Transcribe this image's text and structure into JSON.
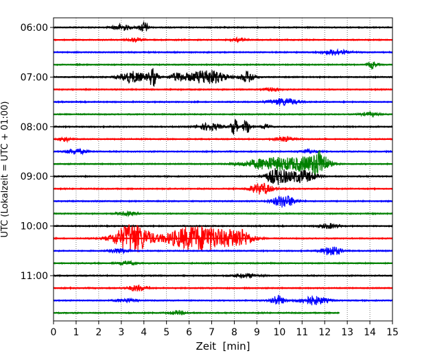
{
  "chart_data": {
    "type": "line",
    "title": "",
    "xlabel": "Zeit  [min]",
    "ylabel": "UTC (Lokalzeit = UTC + 01:00)",
    "xlim": [
      0,
      15
    ],
    "x_ticks": [
      "0",
      "1",
      "2",
      "3",
      "4",
      "5",
      "6",
      "7",
      "8",
      "9",
      "10",
      "11",
      "12",
      "13",
      "14",
      "15"
    ],
    "y_ticks": [
      "06:00",
      "07:00",
      "08:00",
      "09:00",
      "10:00",
      "11:00"
    ],
    "grid": "vertical dotted",
    "colors": {
      "black": "#000000",
      "red": "#ff0000",
      "blue": "#0000ff",
      "green": "#008000"
    },
    "color_cycle": [
      "black",
      "red",
      "blue",
      "green"
    ],
    "trace_interval_min": 15,
    "traces": [
      {
        "start": "06:00",
        "color": "black",
        "end_min": 15,
        "bursts": [
          [
            3.0,
            0.4,
            0.5
          ],
          [
            4.0,
            0.2,
            0.9
          ]
        ]
      },
      {
        "start": "06:15",
        "color": "red",
        "end_min": 15,
        "bursts": [
          [
            3.6,
            0.3,
            0.3
          ],
          [
            8.2,
            0.3,
            0.3
          ]
        ]
      },
      {
        "start": "06:30",
        "color": "blue",
        "end_min": 15,
        "bursts": [
          [
            12.5,
            0.5,
            0.5
          ]
        ]
      },
      {
        "start": "06:45",
        "color": "green",
        "end_min": 15,
        "bursts": [
          [
            14.1,
            0.2,
            0.6
          ]
        ]
      },
      {
        "start": "07:00",
        "color": "black",
        "end_min": 15,
        "bursts": [
          [
            3.5,
            0.6,
            0.9
          ],
          [
            4.4,
            0.2,
            1.4
          ],
          [
            5.5,
            0.4,
            0.6
          ],
          [
            6.8,
            0.8,
            1.2
          ],
          [
            8.6,
            0.3,
            0.9
          ]
        ]
      },
      {
        "start": "07:15",
        "color": "red",
        "end_min": 15,
        "bursts": [
          [
            9.7,
            0.3,
            0.3
          ]
        ]
      },
      {
        "start": "07:30",
        "color": "blue",
        "end_min": 15,
        "bursts": [
          [
            10.2,
            0.6,
            0.6
          ]
        ]
      },
      {
        "start": "07:45",
        "color": "green",
        "end_min": 15,
        "bursts": [
          [
            14.0,
            0.4,
            0.3
          ]
        ]
      },
      {
        "start": "08:00",
        "color": "black",
        "end_min": 15,
        "bursts": [
          [
            6.9,
            0.5,
            0.6
          ],
          [
            8.0,
            0.15,
            1.4
          ],
          [
            8.55,
            0.15,
            1.4
          ],
          [
            9.4,
            0.2,
            0.4
          ]
        ]
      },
      {
        "start": "08:15",
        "color": "red",
        "end_min": 15,
        "bursts": [
          [
            0.5,
            0.2,
            0.4
          ],
          [
            10.2,
            0.4,
            0.4
          ]
        ]
      },
      {
        "start": "08:30",
        "color": "blue",
        "end_min": 15,
        "bursts": [
          [
            1.0,
            0.5,
            0.4
          ],
          [
            11.3,
            0.4,
            0.3
          ]
        ]
      },
      {
        "start": "08:45",
        "color": "green",
        "end_min": 15,
        "bursts": [
          [
            9.7,
            1.2,
            1.0
          ],
          [
            11.3,
            0.8,
            1.0
          ],
          [
            11.8,
            0.3,
            1.6
          ]
        ]
      },
      {
        "start": "09:00",
        "color": "black",
        "end_min": 15,
        "bursts": [
          [
            9.9,
            0.5,
            1.3
          ],
          [
            11.0,
            0.6,
            1.0
          ]
        ]
      },
      {
        "start": "09:15",
        "color": "red",
        "end_min": 15,
        "bursts": [
          [
            9.2,
            0.5,
            0.9
          ]
        ]
      },
      {
        "start": "09:30",
        "color": "blue",
        "end_min": 15,
        "bursts": [
          [
            10.2,
            0.5,
            1.0
          ]
        ]
      },
      {
        "start": "09:45",
        "color": "green",
        "end_min": 15,
        "bursts": [
          [
            3.2,
            0.4,
            0.3
          ]
        ]
      },
      {
        "start": "10:00",
        "color": "black",
        "end_min": 15,
        "bursts": [
          [
            12.2,
            0.4,
            0.4
          ]
        ]
      },
      {
        "start": "10:15",
        "color": "red",
        "end_min": 15,
        "bursts": [
          [
            3.5,
            0.8,
            2.4
          ],
          [
            5.8,
            0.9,
            1.5
          ],
          [
            6.9,
            0.8,
            1.6
          ],
          [
            8.2,
            0.6,
            1.5
          ]
        ]
      },
      {
        "start": "10:30",
        "color": "blue",
        "end_min": 15,
        "bursts": [
          [
            2.9,
            0.4,
            0.4
          ],
          [
            12.3,
            0.4,
            0.8
          ]
        ]
      },
      {
        "start": "10:45",
        "color": "green",
        "end_min": 15,
        "bursts": [
          [
            3.3,
            0.4,
            0.3
          ]
        ]
      },
      {
        "start": "11:00",
        "color": "black",
        "end_min": 15,
        "bursts": [
          [
            8.5,
            0.6,
            0.3
          ]
        ]
      },
      {
        "start": "11:15",
        "color": "red",
        "end_min": 15,
        "bursts": [
          [
            3.7,
            0.4,
            0.5
          ]
        ]
      },
      {
        "start": "11:30",
        "color": "blue",
        "end_min": 15,
        "bursts": [
          [
            3.2,
            0.4,
            0.3
          ],
          [
            9.9,
            0.3,
            0.8
          ],
          [
            11.5,
            0.6,
            0.7
          ]
        ]
      },
      {
        "start": "11:45",
        "color": "green",
        "end_min": 12.65,
        "bursts": [
          [
            5.5,
            0.4,
            0.3
          ]
        ]
      }
    ]
  }
}
